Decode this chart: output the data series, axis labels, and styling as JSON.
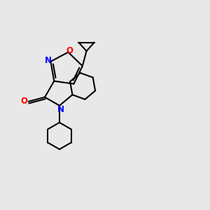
{
  "bg_color": "#e8e8e8",
  "bond_color": "#000000",
  "o_color": "#ff0000",
  "n_color": "#0000ff",
  "line_width": 1.5,
  "figsize": [
    3.0,
    3.0
  ],
  "dpi": 100,
  "xlim": [
    0,
    10
  ],
  "ylim": [
    0,
    10
  ]
}
